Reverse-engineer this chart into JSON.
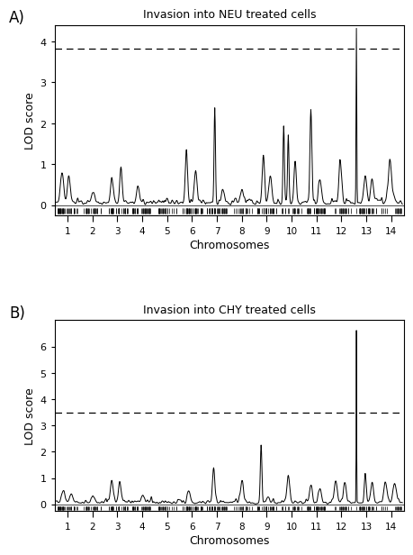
{
  "title_A": "Invasion into NEU treated cells",
  "title_B": "Invasion into CHY treated cells",
  "ylabel": "LOD score",
  "xlabel": "Chromosomes",
  "threshold_A": 3.83,
  "threshold_B": 3.5,
  "ylim_A": [
    -0.25,
    4.4
  ],
  "ylim_B": [
    -0.25,
    7.0
  ],
  "yticks_A": [
    0,
    1,
    2,
    3,
    4
  ],
  "yticks_B": [
    0,
    1,
    2,
    3,
    4,
    5,
    6
  ],
  "chromosomes": [
    1,
    2,
    3,
    4,
    5,
    6,
    7,
    8,
    9,
    10,
    11,
    12,
    13,
    14
  ],
  "label_A": "A)",
  "label_B": "B)",
  "background_color": "#ffffff",
  "line_color": "#000000",
  "threshold_color": "#000000"
}
